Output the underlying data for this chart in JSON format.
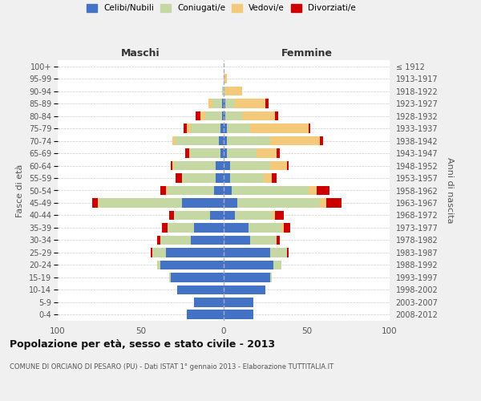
{
  "age_groups": [
    "0-4",
    "5-9",
    "10-14",
    "15-19",
    "20-24",
    "25-29",
    "30-34",
    "35-39",
    "40-44",
    "45-49",
    "50-54",
    "55-59",
    "60-64",
    "65-69",
    "70-74",
    "75-79",
    "80-84",
    "85-89",
    "90-94",
    "95-99",
    "100+"
  ],
  "birth_years": [
    "2008-2012",
    "2003-2007",
    "1998-2002",
    "1993-1997",
    "1988-1992",
    "1983-1987",
    "1978-1982",
    "1973-1977",
    "1968-1972",
    "1963-1967",
    "1958-1962",
    "1953-1957",
    "1948-1952",
    "1943-1947",
    "1938-1942",
    "1933-1937",
    "1928-1932",
    "1923-1927",
    "1918-1922",
    "1913-1917",
    "≤ 1912"
  ],
  "males": {
    "celibe": [
      22,
      18,
      28,
      32,
      38,
      35,
      20,
      18,
      8,
      25,
      6,
      5,
      5,
      2,
      3,
      2,
      1,
      1,
      0,
      0,
      0
    ],
    "coniugato": [
      0,
      0,
      0,
      1,
      2,
      8,
      18,
      16,
      22,
      50,
      28,
      20,
      25,
      18,
      26,
      18,
      10,
      6,
      1,
      0,
      0
    ],
    "vedovo": [
      0,
      0,
      0,
      0,
      0,
      0,
      0,
      0,
      0,
      1,
      1,
      0,
      1,
      1,
      2,
      2,
      3,
      2,
      0,
      0,
      0
    ],
    "divorziato": [
      0,
      0,
      0,
      0,
      0,
      1,
      2,
      3,
      3,
      3,
      3,
      4,
      1,
      2,
      0,
      2,
      3,
      0,
      0,
      0,
      0
    ]
  },
  "females": {
    "nubile": [
      18,
      18,
      25,
      28,
      30,
      28,
      16,
      15,
      7,
      8,
      5,
      4,
      4,
      2,
      2,
      2,
      1,
      1,
      0,
      0,
      0
    ],
    "coniugata": [
      0,
      0,
      0,
      1,
      5,
      10,
      16,
      20,
      22,
      50,
      46,
      20,
      24,
      18,
      26,
      14,
      10,
      6,
      1,
      0,
      0
    ],
    "vedova": [
      0,
      0,
      0,
      0,
      0,
      0,
      0,
      1,
      2,
      4,
      5,
      5,
      10,
      12,
      30,
      35,
      20,
      18,
      10,
      2,
      0
    ],
    "divorziata": [
      0,
      0,
      0,
      0,
      0,
      1,
      2,
      4,
      5,
      9,
      8,
      3,
      1,
      2,
      2,
      1,
      2,
      2,
      0,
      0,
      0
    ]
  },
  "colors": {
    "celibe_nubile": "#4472C4",
    "coniugato_a": "#C5D8A4",
    "vedovo_a": "#F5C97A",
    "divorziato_a": "#CC0000"
  },
  "xlim": 100,
  "title": "Popolazione per età, sesso e stato civile - 2013",
  "subtitle": "COMUNE DI ORCIANO DI PESARO (PU) - Dati ISTAT 1° gennaio 2013 - Elaborazione TUTTITALIA.IT",
  "ylabel": "Fasce di età",
  "ylabel_right": "Anni di nascita",
  "legend_labels": [
    "Celibi/Nubili",
    "Coniugati/e",
    "Vedovi/e",
    "Divorziati/e"
  ],
  "bg_color": "#f0f0f0",
  "plot_bg": "#ffffff"
}
